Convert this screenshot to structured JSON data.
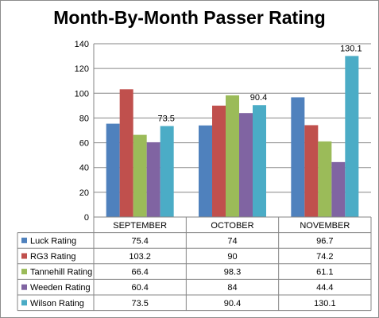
{
  "chart_data": {
    "type": "bar",
    "title": "Month-By-Month Passer Rating",
    "categories": [
      "SEPTEMBER",
      "OCTOBER",
      "NOVEMBER"
    ],
    "series": [
      {
        "name": "Luck Rating",
        "color": "#4f81bd",
        "values": [
          75.4,
          74,
          96.7
        ]
      },
      {
        "name": "RG3 Rating",
        "color": "#c0504d",
        "values": [
          103.2,
          90,
          74.2
        ]
      },
      {
        "name": "Tannehill Rating",
        "color": "#9bbb59",
        "values": [
          66.4,
          98.3,
          61.1
        ]
      },
      {
        "name": "Weeden Rating",
        "color": "#8064a2",
        "values": [
          60.4,
          84,
          44.4
        ]
      },
      {
        "name": "Wilson Rating",
        "color": "#4bacc6",
        "values": [
          73.5,
          90.4,
          130.1
        ]
      }
    ],
    "data_labels": [
      {
        "series": "Wilson Rating",
        "category": "SEPTEMBER",
        "text": "73.5"
      },
      {
        "series": "Wilson Rating",
        "category": "OCTOBER",
        "text": "90.4"
      },
      {
        "series": "Wilson Rating",
        "category": "NOVEMBER",
        "text": "130.1"
      }
    ],
    "table": {
      "rows": [
        {
          "series": "Luck Rating",
          "cells": [
            "75.4",
            "74",
            "96.7"
          ]
        },
        {
          "series": "RG3 Rating",
          "cells": [
            "103.2",
            "90",
            "74.2"
          ]
        },
        {
          "series": "Tannehill Rating",
          "cells": [
            "66.4",
            "98.3",
            "61.1"
          ]
        },
        {
          "series": "Weeden Rating",
          "cells": [
            "60.4",
            "84",
            "44.4"
          ]
        },
        {
          "series": "Wilson Rating",
          "cells": [
            "73.5",
            "90.4",
            "130.1"
          ]
        }
      ]
    },
    "ylim": [
      0,
      140
    ],
    "yticks": [
      "0",
      "20",
      "40",
      "60",
      "80",
      "100",
      "120",
      "140"
    ],
    "grid": true,
    "legend": "data-table-below"
  }
}
